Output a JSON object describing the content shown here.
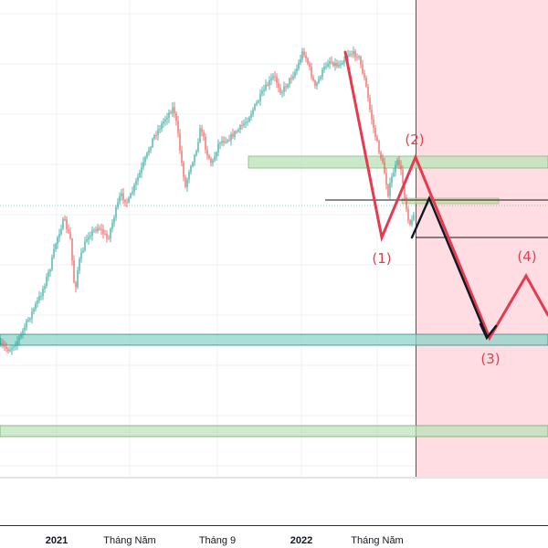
{
  "chart_data": {
    "type": "candlestick",
    "title": "",
    "xlabel": "",
    "ylabel": "",
    "x_ticks": [
      {
        "label": "2021",
        "bold": true
      },
      {
        "label": "Tháng Năm",
        "bold": false
      },
      {
        "label": "Tháng 9",
        "bold": false
      },
      {
        "label": "2022",
        "bold": true
      },
      {
        "label": "Tháng Năm",
        "bold": false
      }
    ],
    "grid": true,
    "colors": {
      "bull": "#26a69a",
      "bear": "#ef5350",
      "projection_wave": "#e8394f",
      "alt_wave": "#131722",
      "forecast_zone": "#ffdde2",
      "zone_green": "#b9e3b8",
      "zone_teal": "#8fd3c9"
    },
    "wave_labels": [
      "(1)",
      "(2)",
      "(3)",
      "(4)"
    ]
  }
}
